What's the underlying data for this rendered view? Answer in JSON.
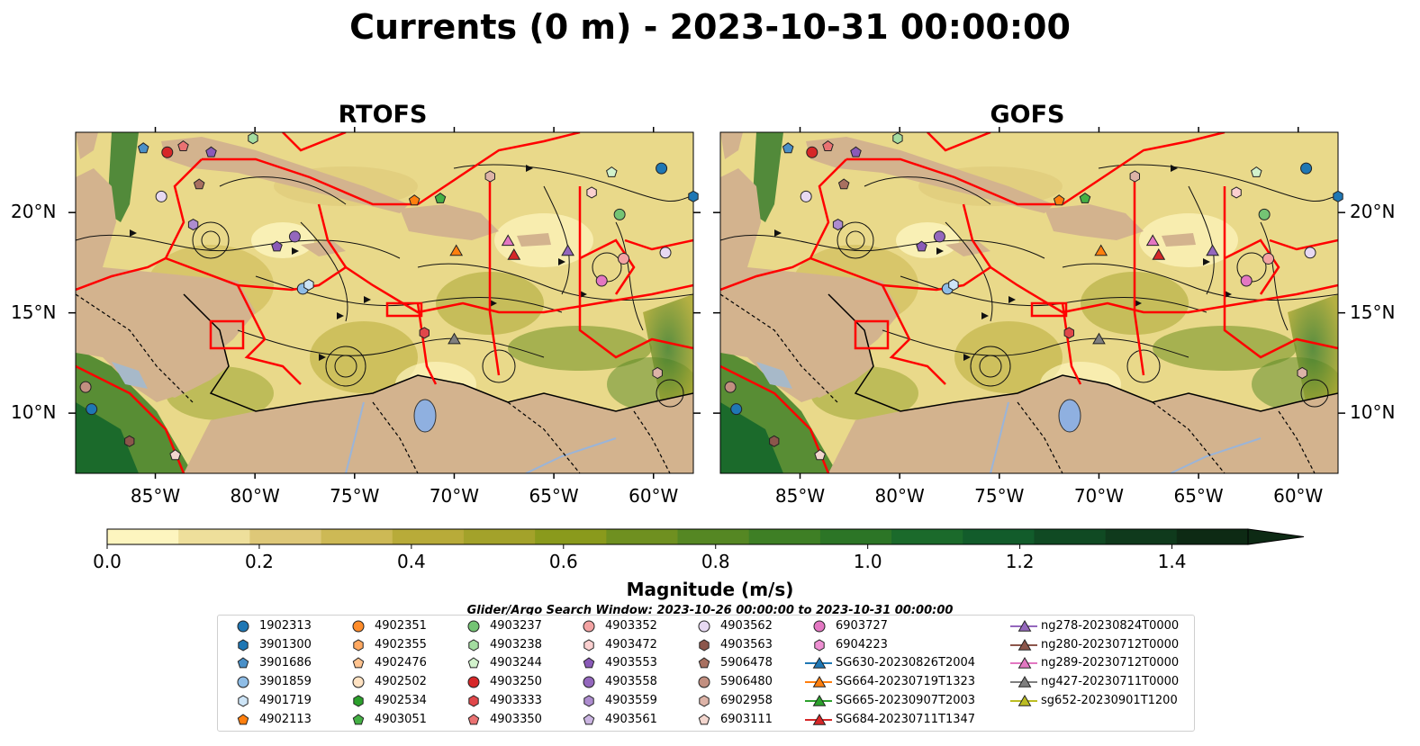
{
  "title": "Currents (0 m) - 2023-10-31 00:00:00",
  "panels": [
    {
      "title": "RTOFS"
    },
    {
      "title": "GOFS"
    }
  ],
  "lon_ticks": [
    "85°W",
    "80°W",
    "75°W",
    "70°W",
    "65°W",
    "60°W"
  ],
  "lat_ticks": [
    "20°N",
    "15°N",
    "10°N"
  ],
  "extent": {
    "lon": [
      -89,
      -58
    ],
    "lat": [
      7,
      24
    ]
  },
  "colorbar": {
    "label": "Magnitude (m/s)",
    "ticks": [
      "0.0",
      "0.2",
      "0.4",
      "0.6",
      "0.8",
      "1.0",
      "1.2",
      "1.4"
    ],
    "range": [
      0,
      1.5
    ],
    "extend": "max",
    "colors": [
      "#fdf5bf",
      "#eedf9b",
      "#dec878",
      "#cdb955",
      "#b8ab39",
      "#a3a22a",
      "#8a9a1c",
      "#6f9020",
      "#558723",
      "#3e7f25",
      "#2c7526",
      "#1b6a2b",
      "#125c2b",
      "#104a23",
      "#0f3a1c",
      "#0d2a14"
    ]
  },
  "search_window": "Glider/Argo Search Window: 2023-10-26 00:00:00 to 2023-10-31 00:00:00",
  "colors": {
    "land": "#d3b38e",
    "ocean": "#e9d98a",
    "boundary": "#ff0000",
    "river": "#9ab4d8"
  },
  "legend": [
    {
      "label": "1902313",
      "marker": "circle",
      "color": "#1f77b4"
    },
    {
      "label": "3901300",
      "marker": "hexagon",
      "color": "#1f77b4"
    },
    {
      "label": "3901686",
      "marker": "pentagon",
      "color": "#4a90c8"
    },
    {
      "label": "3901859",
      "marker": "circle",
      "color": "#8fbde6"
    },
    {
      "label": "4901719",
      "marker": "hexagon",
      "color": "#cde4f6"
    },
    {
      "label": "4902113",
      "marker": "pentagon",
      "color": "#ff7f0e"
    },
    {
      "label": "4902351",
      "marker": "circle",
      "color": "#ff8c2a"
    },
    {
      "label": "4902355",
      "marker": "hexagon",
      "color": "#ffa860"
    },
    {
      "label": "4902476",
      "marker": "pentagon",
      "color": "#ffc38f"
    },
    {
      "label": "4902502",
      "marker": "circle",
      "color": "#ffe2c2"
    },
    {
      "label": "4902534",
      "marker": "hexagon",
      "color": "#2ca02c"
    },
    {
      "label": "4903051",
      "marker": "pentagon",
      "color": "#44b044"
    },
    {
      "label": "4903237",
      "marker": "circle",
      "color": "#74c474"
    },
    {
      "label": "4903238",
      "marker": "hexagon",
      "color": "#a3dca0"
    },
    {
      "label": "4903244",
      "marker": "pentagon",
      "color": "#d2f2cc"
    },
    {
      "label": "4903250",
      "marker": "circle",
      "color": "#d62728"
    },
    {
      "label": "4903333",
      "marker": "hexagon",
      "color": "#e0474a"
    },
    {
      "label": "4903350",
      "marker": "pentagon",
      "color": "#ea7272"
    },
    {
      "label": "4903352",
      "marker": "circle",
      "color": "#f3a3a3"
    },
    {
      "label": "4903472",
      "marker": "hexagon",
      "color": "#fbd0d0"
    },
    {
      "label": "4903553",
      "marker": "pentagon",
      "color": "#8a5ab8"
    },
    {
      "label": "4903558",
      "marker": "circle",
      "color": "#9467bd"
    },
    {
      "label": "4903559",
      "marker": "hexagon",
      "color": "#ad8ccf"
    },
    {
      "label": "4903561",
      "marker": "pentagon",
      "color": "#cbb5e2"
    },
    {
      "label": "4903562",
      "marker": "circle",
      "color": "#e7d9f2"
    },
    {
      "label": "4903563",
      "marker": "hexagon",
      "color": "#8c564b"
    },
    {
      "label": "5906478",
      "marker": "pentagon",
      "color": "#a87060"
    },
    {
      "label": "5906480",
      "marker": "circle",
      "color": "#c28f80"
    },
    {
      "label": "6902958",
      "marker": "hexagon",
      "color": "#ddb3a7"
    },
    {
      "label": "6903111",
      "marker": "pentagon",
      "color": "#f3d6ce"
    },
    {
      "label": "6903727",
      "marker": "circle",
      "color": "#e377c2"
    },
    {
      "label": "6904223",
      "marker": "hexagon",
      "color": "#ee8fd2"
    },
    {
      "label": "SG630-20230826T2004",
      "marker": "triangle",
      "color": "#1f77b4"
    },
    {
      "label": "SG664-20230719T1323",
      "marker": "triangle",
      "color": "#ff7f0e"
    },
    {
      "label": "SG665-20230907T2003",
      "marker": "triangle",
      "color": "#2ca02c"
    },
    {
      "label": "SG684-20230711T1347",
      "marker": "triangle",
      "color": "#d62728"
    },
    {
      "label": "ng278-20230824T0000",
      "marker": "triangle",
      "color": "#9467bd"
    },
    {
      "label": "ng280-20230712T0000",
      "marker": "triangle",
      "color": "#8c564b"
    },
    {
      "label": "ng289-20230712T0000",
      "marker": "triangle",
      "color": "#e377c2"
    },
    {
      "label": "ng427-20230711T0000",
      "marker": "triangle",
      "color": "#7f7f7f"
    },
    {
      "label": "sg652-20230901T1200",
      "marker": "triangle",
      "color": "#bcbd22"
    }
  ]
}
